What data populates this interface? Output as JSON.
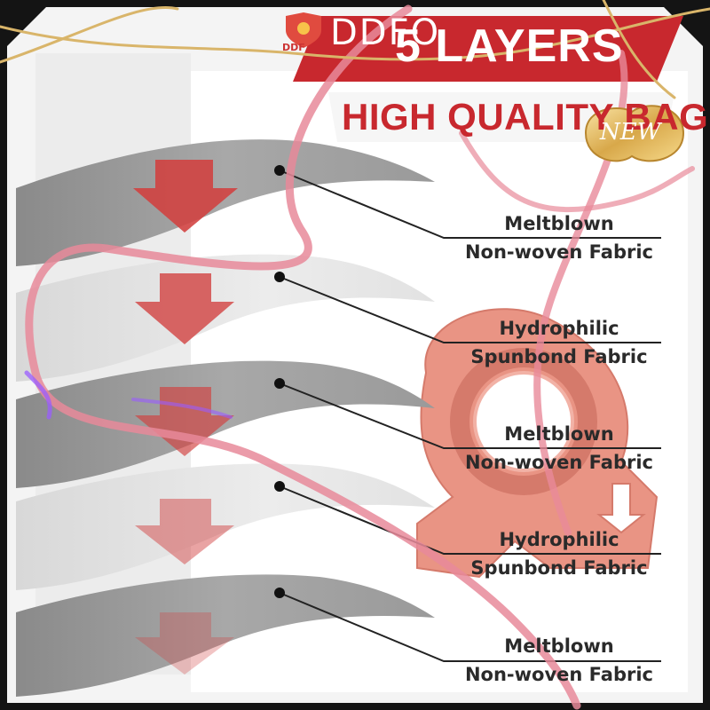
{
  "brand": {
    "name": "DDFO",
    "logo_text": "DDF"
  },
  "header": {
    "headline": "5 LAYERS",
    "subhead": "HIGH QUALITY BAG"
  },
  "badge": {
    "label": "NEW"
  },
  "layers": [
    {
      "line1": "Meltblown",
      "line2": "Non-woven Fabric"
    },
    {
      "line1": "Hydrophilic",
      "line2": "Spunbond Fabric"
    },
    {
      "line1": "Meltblown",
      "line2": "Non-woven Fabric"
    },
    {
      "line1": "Hydrophilic",
      "line2": "Spunbond Fabric"
    },
    {
      "line1": "Meltblown",
      "line2": "Non-woven Fabric"
    }
  ],
  "colors": {
    "accent_red": "#c8282e",
    "ribbon_pink": "#e88a9a",
    "ribbon_gold": "#d9b56a",
    "frame_dark": "#141414",
    "collar_salmon": "#e99484"
  },
  "icons": {
    "arrow": "down-arrow-icon",
    "logo": "shield-logo-icon",
    "badge": "new-badge-icon"
  }
}
